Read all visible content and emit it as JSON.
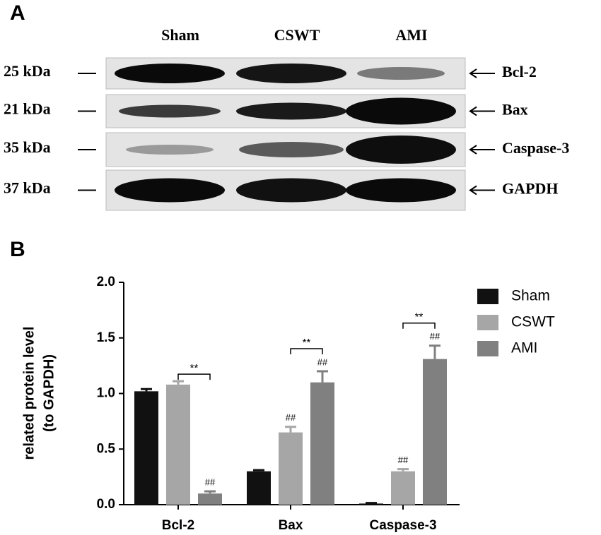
{
  "panel_a": {
    "label": "A",
    "lanes": [
      "Sham",
      "CSWT",
      "AMI"
    ],
    "rows": [
      {
        "mw": "25 kDa",
        "protein": "Bcl-2"
      },
      {
        "mw": "21 kDa",
        "protein": "Bax"
      },
      {
        "mw": "35 kDa",
        "protein": "Caspase-3"
      },
      {
        "mw": "37 kDa",
        "protein": "GAPDH"
      }
    ]
  },
  "chart_data": {
    "type": "bar",
    "panel_label": "B",
    "ylabel": [
      "related  protein level",
      "(to GAPDH)"
    ],
    "categories": [
      "Bcl-2",
      "Bax",
      "Caspase-3"
    ],
    "series": [
      {
        "name": "Sham",
        "color": "#111111",
        "values": [
          1.02,
          0.3,
          0.01
        ],
        "errors": [
          0.02,
          0.01,
          0.005
        ]
      },
      {
        "name": "CSWT",
        "color": "#a6a6a6",
        "values": [
          1.08,
          0.65,
          0.3
        ],
        "errors": [
          0.03,
          0.05,
          0.02
        ],
        "annotations": [
          null,
          "##",
          "##"
        ]
      },
      {
        "name": "AMI",
        "color": "#808080",
        "values": [
          0.1,
          1.1,
          1.31
        ],
        "errors": [
          0.02,
          0.1,
          0.12
        ],
        "annotations": [
          "##",
          "##",
          "##"
        ]
      }
    ],
    "bracket_labels": [
      "**",
      "**",
      "**"
    ],
    "ylim": [
      0,
      2.0
    ],
    "yticks": [
      {
        "value": 0,
        "label": "0.0"
      },
      {
        "value": 0.5,
        "label": "0.5"
      },
      {
        "value": 1.0,
        "label": "1.0"
      },
      {
        "value": 1.5,
        "label": "1.5"
      },
      {
        "value": 2.0,
        "label": "2.0"
      }
    ],
    "legend": "right"
  }
}
